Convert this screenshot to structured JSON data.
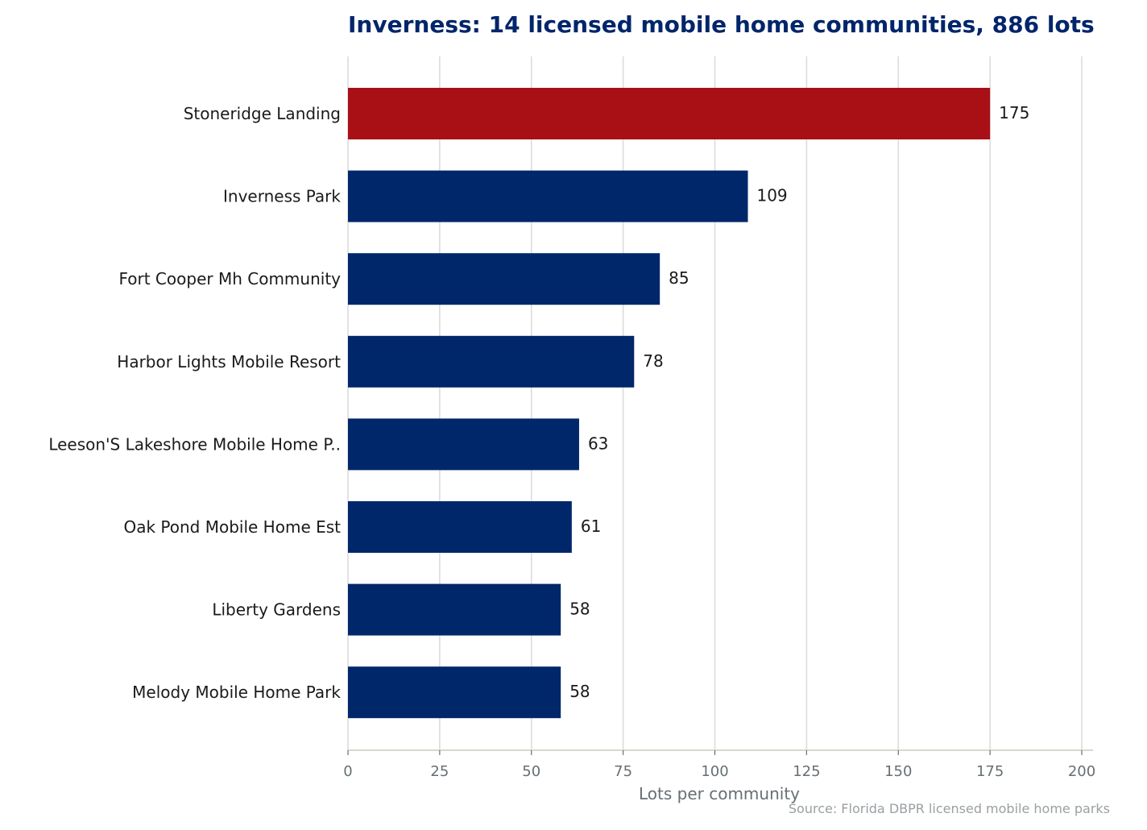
{
  "chart_data": {
    "type": "bar",
    "orientation": "horizontal",
    "title": "Inverness: 14 licensed mobile home communities, 886 lots",
    "xlabel": "Lots per community",
    "ylabel": "",
    "xlim": [
      0,
      200
    ],
    "x_ticks": [
      "0",
      "25",
      "50",
      "75",
      "100",
      "125",
      "150",
      "175",
      "200"
    ],
    "categories": [
      "Stoneridge Landing",
      "Inverness Park",
      "Fort Cooper Mh Community",
      "Harbor Lights Mobile Resort",
      "Leeson'S Lakeshore Mobile Home P..",
      "Oak Pond Mobile Home Est",
      "Liberty Gardens",
      "Melody Mobile Home Park"
    ],
    "values": [
      175,
      109,
      85,
      78,
      63,
      61,
      58,
      58
    ],
    "highlight_index": 0,
    "grid": "vertical",
    "source": "Source: Florida DBPR licensed mobile home parks",
    "colors": {
      "highlight": "#a81016",
      "bar": "#00276a",
      "title": "#00256a",
      "grid": "#dcdcdc",
      "axis": "#d8d8d0"
    }
  }
}
